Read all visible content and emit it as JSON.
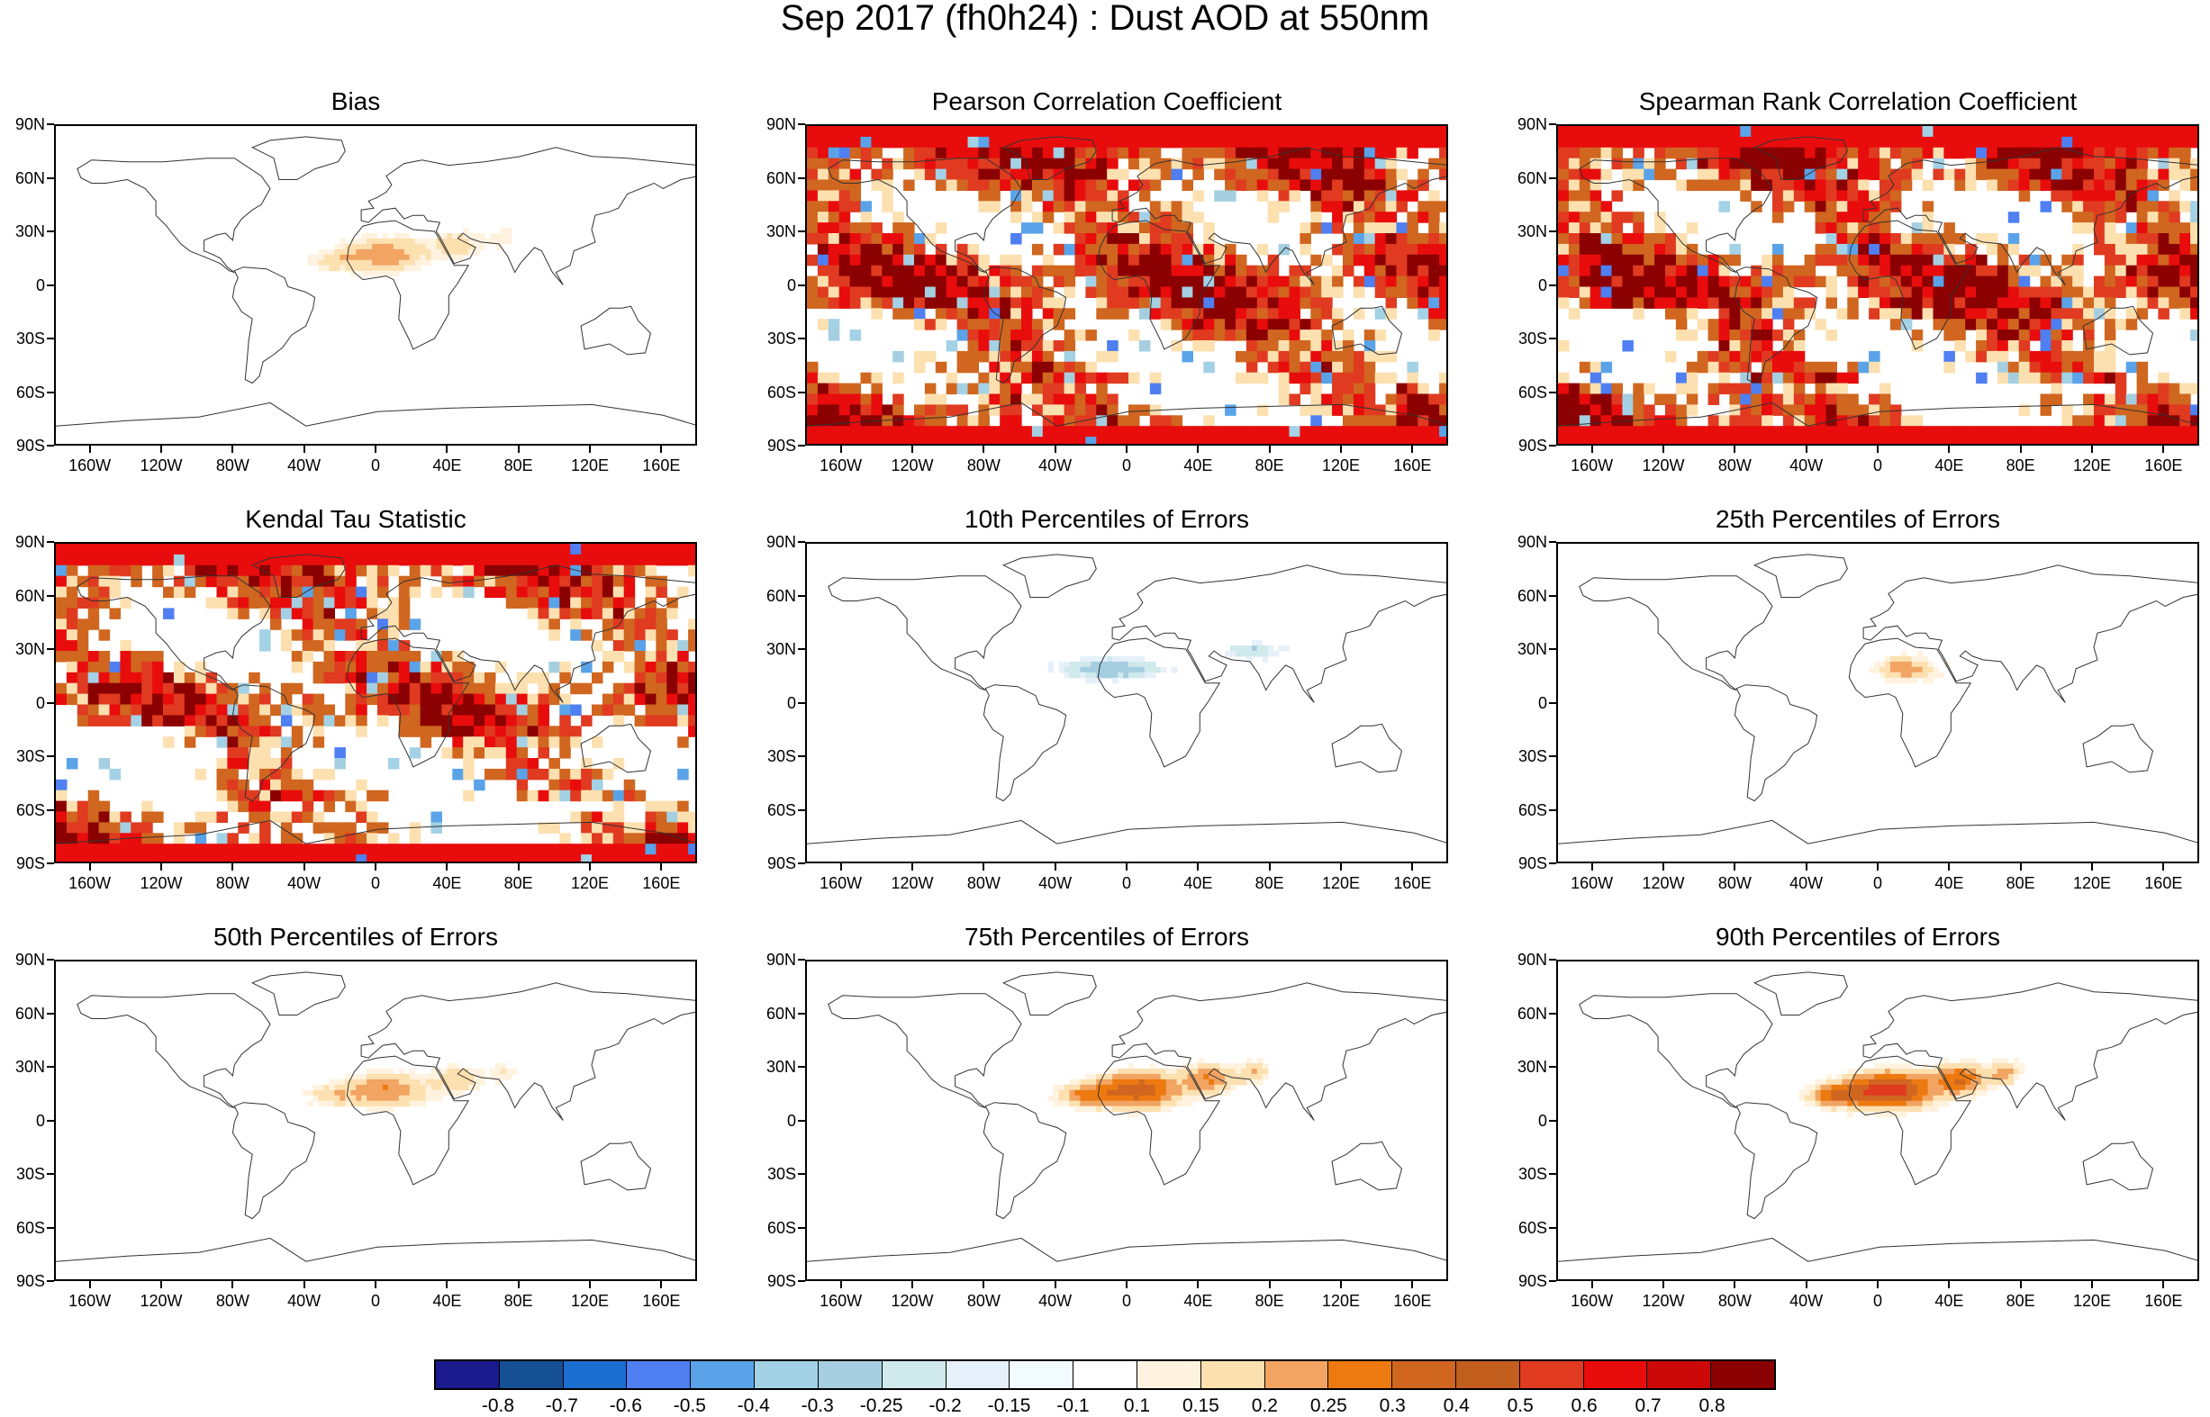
{
  "title": "Sep 2017 (fh0h24) : Dust AOD at 550nm",
  "axes": {
    "lat_labels": [
      "90N",
      "60N",
      "30N",
      "0",
      "30S",
      "60S",
      "90S"
    ],
    "lon_labels": [
      "160W",
      "120W",
      "80W",
      "40W",
      "0",
      "40E",
      "80E",
      "120E",
      "160E"
    ]
  },
  "palette": {
    "ocean_land_border": "#000000",
    "background": "#ffffff"
  },
  "chart_data": [
    {
      "type": "heatmap",
      "title": "Bias",
      "pattern": "dust",
      "xlim": [
        -180,
        180
      ],
      "ylim": [
        -90,
        90
      ]
    },
    {
      "type": "heatmap",
      "title": "Pearson Correlation Coefficient",
      "pattern": "corr-strong",
      "xlim": [
        -180,
        180
      ],
      "ylim": [
        -90,
        90
      ]
    },
    {
      "type": "heatmap",
      "title": "Spearman Rank Correlation Coefficient",
      "pattern": "corr-strong",
      "xlim": [
        -180,
        180
      ],
      "ylim": [
        -90,
        90
      ]
    },
    {
      "type": "heatmap",
      "title": "Kendal Tau Statistic",
      "pattern": "corr-medium",
      "xlim": [
        -180,
        180
      ],
      "ylim": [
        -90,
        90
      ]
    },
    {
      "type": "heatmap",
      "title": "10th Percentiles of Errors",
      "pattern": "p10",
      "xlim": [
        -180,
        180
      ],
      "ylim": [
        -90,
        90
      ]
    },
    {
      "type": "heatmap",
      "title": "25th Percentiles of Errors",
      "pattern": "p25",
      "xlim": [
        -180,
        180
      ],
      "ylim": [
        -90,
        90
      ]
    },
    {
      "type": "heatmap",
      "title": "50th Percentiles of Errors",
      "pattern": "p50",
      "xlim": [
        -180,
        180
      ],
      "ylim": [
        -90,
        90
      ]
    },
    {
      "type": "heatmap",
      "title": "75th Percentiles of Errors",
      "pattern": "p75",
      "xlim": [
        -180,
        180
      ],
      "ylim": [
        -90,
        90
      ]
    },
    {
      "type": "heatmap",
      "title": "90th Percentiles of Errors",
      "pattern": "p90",
      "xlim": [
        -180,
        180
      ],
      "ylim": [
        -90,
        90
      ]
    }
  ],
  "colorbar": {
    "colors": [
      "#1a1a8c",
      "#154f94",
      "#1c6fd1",
      "#4f7ff0",
      "#5aa3e8",
      "#a3d1e6",
      "#a5cfe0",
      "#cfe9ec",
      "#e6f0fa",
      "#f2fbff",
      "#ffffff",
      "#fff3e0",
      "#fde0b0",
      "#f2a462",
      "#ec7a10",
      "#d0661f",
      "#c25e1e",
      "#e03a20",
      "#e80c0c",
      "#cc0808",
      "#8b0000"
    ],
    "labels": [
      "-0.8",
      "-0.7",
      "-0.6",
      "-0.5",
      "-0.4",
      "-0.3",
      "-0.25",
      "-0.2",
      "-0.15",
      "-0.1",
      "0.1",
      "0.15",
      "0.2",
      "0.25",
      "0.3",
      "0.4",
      "0.5",
      "0.6",
      "0.7",
      "0.8"
    ]
  }
}
